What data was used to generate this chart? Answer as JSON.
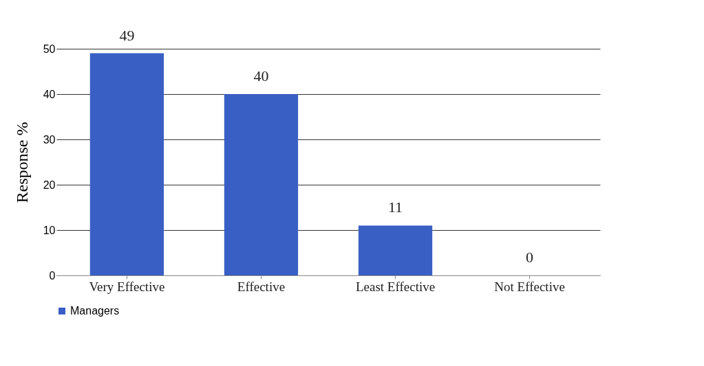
{
  "chart_data": {
    "type": "bar",
    "categories": [
      "Very Effective",
      "Effective",
      "Least Effective",
      "Not Effective"
    ],
    "series": [
      {
        "name": "Managers",
        "color": "#3a5fc4",
        "values": [
          49,
          40,
          11,
          0
        ]
      }
    ],
    "ylabel": "Response %",
    "ylim": [
      0,
      50
    ],
    "yticks": [
      0,
      10,
      20,
      30,
      40,
      50
    ],
    "grid": "y",
    "legend": "bottom",
    "data_labels": true
  }
}
